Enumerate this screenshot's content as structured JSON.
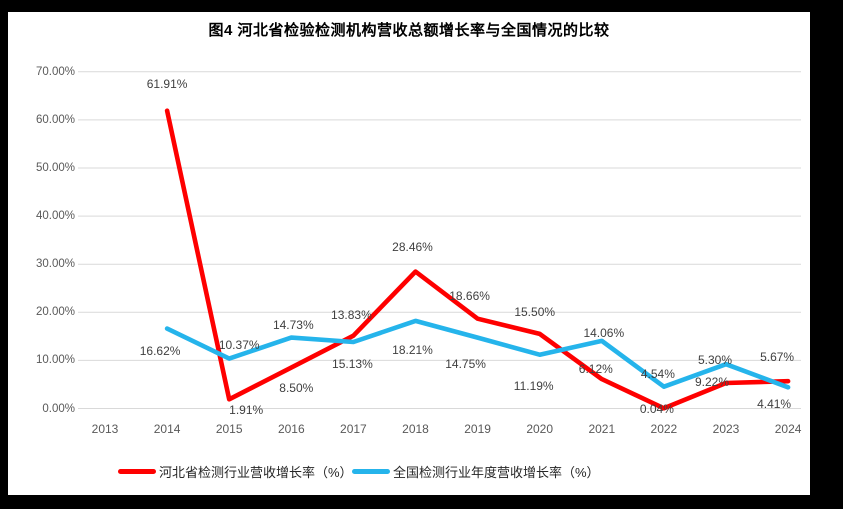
{
  "frame": {
    "background": "#000000",
    "panel_background": "#FFFFFF"
  },
  "chart_data": {
    "type": "line",
    "title": "图4 河北省检验检测机构营收总额增长率与全国情况的比较",
    "categories": [
      "2013",
      "2014",
      "2015",
      "2016",
      "2017",
      "2018",
      "2019",
      "2020",
      "2021",
      "2022",
      "2023",
      "2024"
    ],
    "series": [
      {
        "name": "河北省检测行业营收增长率（%）",
        "color": "#FE0000",
        "values": [
          null,
          61.91,
          1.91,
          8.5,
          15.13,
          28.46,
          18.66,
          15.5,
          6.12,
          0.04,
          5.3,
          5.67
        ],
        "labels": [
          null,
          "61.91%",
          "1.91%",
          "8.50%",
          "15.13%",
          "28.46%",
          "18.66%",
          "15.50%",
          "6.12%",
          "0.04%",
          "5.30%",
          "5.67%"
        ],
        "label_offsets": [
          null,
          [
            0,
            -27
          ],
          [
            17,
            11
          ],
          [
            5,
            20
          ],
          [
            -1,
            28
          ],
          [
            -3,
            -25
          ],
          [
            -8,
            -23
          ],
          [
            -5,
            -22
          ],
          [
            -6,
            -10
          ],
          [
            -7,
            1
          ],
          [
            -11,
            -23
          ],
          [
            -11,
            -24
          ]
        ]
      },
      {
        "name": "全国检测行业年度营收增长率（%）",
        "color": "#25B4EB",
        "values": [
          null,
          16.62,
          10.37,
          14.73,
          13.83,
          18.21,
          14.75,
          11.19,
          14.06,
          4.54,
          9.22,
          4.41
        ],
        "labels": [
          null,
          "16.62%",
          "10.37%",
          "14.73%",
          "13.83%",
          "18.21%",
          "14.75%",
          "11.19%",
          "14.06%",
          "4.54%",
          "9.22%",
          "4.41%"
        ],
        "label_offsets": [
          null,
          [
            -7,
            22
          ],
          [
            10,
            -14
          ],
          [
            2,
            -13
          ],
          [
            -2,
            -27
          ],
          [
            -3,
            29
          ],
          [
            -12,
            26
          ],
          [
            -6,
            31
          ],
          [
            2,
            -8
          ],
          [
            -6,
            -13
          ],
          [
            -14,
            18
          ],
          [
            -14,
            17
          ]
        ]
      }
    ],
    "ylim": [
      0,
      70
    ],
    "ytick_step": 10,
    "ytick_labels": [
      "0.00%",
      "10.00%",
      "20.00%",
      "30.00%",
      "40.00%",
      "50.00%",
      "60.00%",
      "70.00%"
    ],
    "grid": true,
    "grid_color": "#D9D9D9",
    "axis_text_color": "#595959",
    "data_label_color": "#404040",
    "legend_position": "bottom"
  }
}
